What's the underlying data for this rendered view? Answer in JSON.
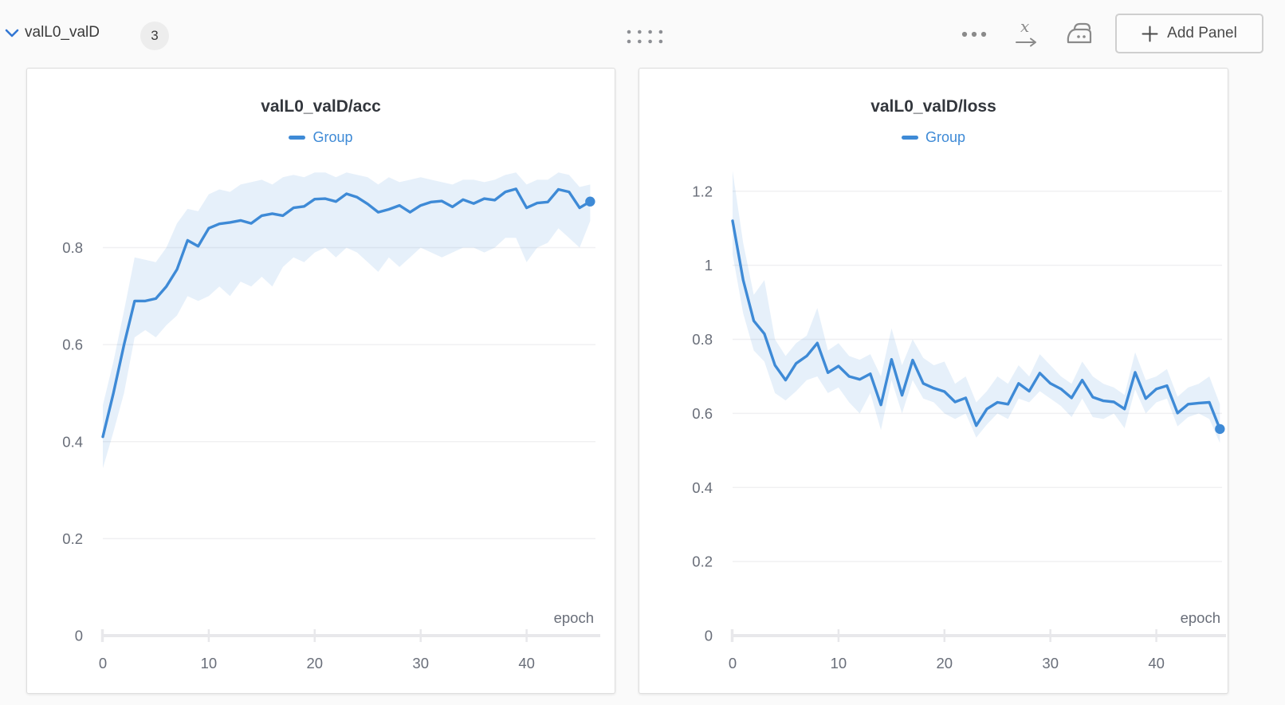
{
  "header": {
    "title": "valL0_valD",
    "badge": "3",
    "add_panel_label": "Add Panel",
    "icons": [
      "chevron-down-icon",
      "drag-handle-icon",
      "ellipsis-icon",
      "x-axis-settings-icon",
      "iron-panel-settings-icon",
      "plus-icon"
    ]
  },
  "colors": {
    "accent_blue": "#3e8ad6",
    "chevron_blue": "#3377d4",
    "band_fill": "#3e8ad6",
    "band_opacity": 0.13,
    "gridline": "#f0f0f2",
    "axis_line": "#e8e8eb",
    "tick_text": "#696e79",
    "page_bg": "#fafafa",
    "panel_bg": "#ffffff",
    "panel_border": "#dedede",
    "icon_gray": "#8a8a8a",
    "title_text": "#33373d"
  },
  "chart_data": [
    {
      "type": "line",
      "title": "valL0_valD/acc",
      "xlabel": "epoch",
      "ylabel": "",
      "legend_position": "top",
      "grid": "horizontal",
      "xlim": [
        0,
        46.5
      ],
      "ylim": [
        0,
        0.985
      ],
      "x_tick_values": [
        0,
        10,
        20,
        30,
        40
      ],
      "x_tick_labels": [
        "0",
        "10",
        "20",
        "30",
        "40"
      ],
      "y_tick_values": [
        0,
        0.2,
        0.4,
        0.6,
        0.8
      ],
      "y_tick_labels": [
        "0",
        "0.2",
        "0.4",
        "0.6",
        "0.8"
      ],
      "x": [
        0,
        1,
        2,
        3,
        4,
        5,
        6,
        7,
        8,
        9,
        10,
        11,
        12,
        13,
        14,
        15,
        16,
        17,
        18,
        19,
        20,
        21,
        22,
        23,
        24,
        25,
        26,
        27,
        28,
        29,
        30,
        31,
        32,
        33,
        34,
        35,
        36,
        37,
        38,
        39,
        40,
        41,
        42,
        43,
        44,
        45,
        46
      ],
      "series": [
        {
          "name": "Group",
          "values": [
            0.41,
            0.5,
            0.6,
            0.69,
            0.69,
            0.695,
            0.72,
            0.755,
            0.815,
            0.803,
            0.84,
            0.849,
            0.852,
            0.856,
            0.85,
            0.866,
            0.87,
            0.866,
            0.882,
            0.885,
            0.9,
            0.901,
            0.895,
            0.911,
            0.904,
            0.89,
            0.873,
            0.879,
            0.887,
            0.873,
            0.887,
            0.894,
            0.896,
            0.884,
            0.899,
            0.891,
            0.901,
            0.898,
            0.915,
            0.921,
            0.882,
            0.892,
            0.894,
            0.92,
            0.915,
            0.882,
            0.895
          ],
          "band_min": [
            0.345,
            0.42,
            0.5,
            0.615,
            0.63,
            0.615,
            0.64,
            0.66,
            0.7,
            0.69,
            0.7,
            0.72,
            0.7,
            0.73,
            0.72,
            0.74,
            0.72,
            0.76,
            0.78,
            0.77,
            0.79,
            0.8,
            0.78,
            0.8,
            0.79,
            0.77,
            0.75,
            0.78,
            0.76,
            0.78,
            0.8,
            0.79,
            0.78,
            0.79,
            0.8,
            0.8,
            0.79,
            0.8,
            0.82,
            0.82,
            0.77,
            0.8,
            0.81,
            0.84,
            0.82,
            0.8,
            0.855
          ],
          "band_max": [
            0.475,
            0.565,
            0.67,
            0.78,
            0.775,
            0.77,
            0.8,
            0.85,
            0.88,
            0.875,
            0.91,
            0.92,
            0.915,
            0.93,
            0.935,
            0.94,
            0.93,
            0.945,
            0.95,
            0.945,
            0.955,
            0.955,
            0.945,
            0.955,
            0.95,
            0.945,
            0.93,
            0.945,
            0.935,
            0.94,
            0.945,
            0.94,
            0.935,
            0.93,
            0.94,
            0.94,
            0.935,
            0.94,
            0.95,
            0.955,
            0.93,
            0.94,
            0.94,
            0.955,
            0.95,
            0.925,
            0.93
          ]
        }
      ]
    },
    {
      "type": "line",
      "title": "valL0_valD/loss",
      "xlabel": "epoch",
      "ylabel": "",
      "legend_position": "top",
      "grid": "horizontal",
      "xlim": [
        0,
        46.2
      ],
      "ylim": [
        0,
        1.29
      ],
      "x_tick_values": [
        0,
        10,
        20,
        30,
        40
      ],
      "x_tick_labels": [
        "0",
        "10",
        "20",
        "30",
        "40"
      ],
      "y_tick_values": [
        0,
        0.2,
        0.4,
        0.6,
        0.8,
        1.0,
        1.2
      ],
      "y_tick_labels": [
        "0",
        "0.2",
        "0.4",
        "0.6",
        "0.8",
        "1",
        "1.2"
      ],
      "x": [
        0,
        1,
        2,
        3,
        4,
        5,
        6,
        7,
        8,
        9,
        10,
        11,
        12,
        13,
        14,
        15,
        16,
        17,
        18,
        19,
        20,
        21,
        22,
        23,
        24,
        25,
        26,
        27,
        28,
        29,
        30,
        31,
        32,
        33,
        34,
        35,
        36,
        37,
        38,
        39,
        40,
        41,
        42,
        43,
        44,
        45,
        46
      ],
      "series": [
        {
          "name": "Group",
          "values": [
            1.12,
            0.96,
            0.85,
            0.815,
            0.73,
            0.69,
            0.735,
            0.755,
            0.79,
            0.71,
            0.728,
            0.7,
            0.692,
            0.707,
            0.623,
            0.746,
            0.649,
            0.744,
            0.681,
            0.668,
            0.659,
            0.631,
            0.642,
            0.567,
            0.612,
            0.63,
            0.625,
            0.681,
            0.66,
            0.709,
            0.681,
            0.666,
            0.642,
            0.69,
            0.644,
            0.634,
            0.631,
            0.612,
            0.711,
            0.64,
            0.666,
            0.675,
            0.601,
            0.625,
            0.628,
            0.63,
            0.558
          ],
          "band_min": [
            1.03,
            0.87,
            0.77,
            0.74,
            0.655,
            0.635,
            0.66,
            0.69,
            0.7,
            0.655,
            0.67,
            0.63,
            0.6,
            0.655,
            0.555,
            0.69,
            0.6,
            0.69,
            0.64,
            0.63,
            0.6,
            0.585,
            0.6,
            0.535,
            0.57,
            0.6,
            0.585,
            0.64,
            0.63,
            0.66,
            0.64,
            0.62,
            0.59,
            0.64,
            0.59,
            0.585,
            0.6,
            0.56,
            0.665,
            0.6,
            0.63,
            0.64,
            0.565,
            0.59,
            0.6,
            0.585,
            0.52
          ],
          "band_max": [
            1.255,
            1.06,
            0.92,
            0.96,
            0.8,
            0.755,
            0.79,
            0.81,
            0.885,
            0.77,
            0.79,
            0.755,
            0.745,
            0.76,
            0.7,
            0.83,
            0.73,
            0.8,
            0.75,
            0.73,
            0.74,
            0.68,
            0.7,
            0.63,
            0.66,
            0.7,
            0.68,
            0.73,
            0.7,
            0.76,
            0.73,
            0.7,
            0.68,
            0.74,
            0.7,
            0.68,
            0.67,
            0.65,
            0.765,
            0.69,
            0.7,
            0.72,
            0.645,
            0.67,
            0.68,
            0.7,
            0.625
          ]
        }
      ]
    }
  ]
}
